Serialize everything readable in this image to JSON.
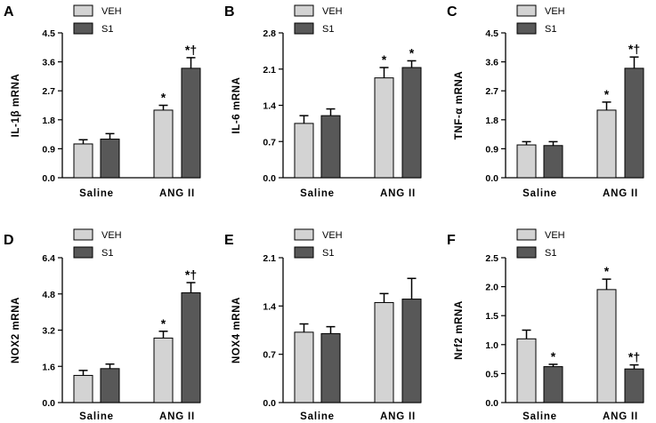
{
  "colors": {
    "veh": "#d3d3d3",
    "s1": "#585858",
    "axis": "#000000"
  },
  "chart_data": [
    {
      "letter": "A",
      "type": "bar",
      "ylabel": "IL-1β mRNA",
      "categories": [
        "Saline",
        "ANG II"
      ],
      "ylim": [
        0,
        4.5
      ],
      "ticks": [
        "0.0",
        "0.9",
        "1.8",
        "2.7",
        "3.6",
        "4.5"
      ],
      "legend": [
        "VEH",
        "S1"
      ],
      "series": [
        {
          "name": "VEH",
          "values": [
            1.05,
            2.1
          ],
          "errors": [
            0.13,
            0.15
          ],
          "annotations": [
            "",
            "*"
          ]
        },
        {
          "name": "S1",
          "values": [
            1.2,
            3.4
          ],
          "errors": [
            0.17,
            0.33
          ],
          "annotations": [
            "",
            "*†"
          ]
        }
      ]
    },
    {
      "letter": "B",
      "type": "bar",
      "ylabel": "IL-6 mRNA",
      "categories": [
        "Saline",
        "ANG II"
      ],
      "ylim": [
        0,
        2.8
      ],
      "ticks": [
        "0.0",
        "0.7",
        "1.4",
        "2.1",
        "2.8"
      ],
      "legend": [
        "VEH",
        "S1"
      ],
      "series": [
        {
          "name": "VEH",
          "values": [
            1.05,
            1.93
          ],
          "errors": [
            0.15,
            0.2
          ],
          "annotations": [
            "",
            "*"
          ]
        },
        {
          "name": "S1",
          "values": [
            1.2,
            2.13
          ],
          "errors": [
            0.13,
            0.13
          ],
          "annotations": [
            "",
            "*"
          ]
        }
      ]
    },
    {
      "letter": "C",
      "type": "bar",
      "ylabel": "TNF-α mRNA",
      "categories": [
        "Saline",
        "ANG II"
      ],
      "ylim": [
        0,
        4.5
      ],
      "ticks": [
        "0.0",
        "0.9",
        "1.8",
        "2.7",
        "3.6",
        "4.5"
      ],
      "legend": [
        "VEH",
        "S1"
      ],
      "series": [
        {
          "name": "VEH",
          "values": [
            1.02,
            2.1
          ],
          "errors": [
            0.1,
            0.25
          ],
          "annotations": [
            "",
            "*"
          ]
        },
        {
          "name": "S1",
          "values": [
            1.0,
            3.4
          ],
          "errors": [
            0.12,
            0.35
          ],
          "annotations": [
            "",
            "*†"
          ]
        }
      ]
    },
    {
      "letter": "D",
      "type": "bar",
      "ylabel": "NOX2 mRNA",
      "categories": [
        "Saline",
        "ANG II"
      ],
      "ylim": [
        0,
        6.4
      ],
      "ticks": [
        "0.0",
        "1.6",
        "3.2",
        "4.8",
        "6.4"
      ],
      "legend": [
        "VEH",
        "S1"
      ],
      "series": [
        {
          "name": "VEH",
          "values": [
            1.2,
            2.85
          ],
          "errors": [
            0.22,
            0.3
          ],
          "annotations": [
            "",
            "*"
          ]
        },
        {
          "name": "S1",
          "values": [
            1.5,
            4.85
          ],
          "errors": [
            0.2,
            0.45
          ],
          "annotations": [
            "",
            "*†"
          ]
        }
      ]
    },
    {
      "letter": "E",
      "type": "bar",
      "ylabel": "NOX4 mRNA",
      "categories": [
        "Saline",
        "ANG II"
      ],
      "ylim": [
        0,
        2.1
      ],
      "ticks": [
        "0.0",
        "0.7",
        "1.4",
        "2.1"
      ],
      "legend": [
        "VEH",
        "S1"
      ],
      "series": [
        {
          "name": "VEH",
          "values": [
            1.02,
            1.45
          ],
          "errors": [
            0.12,
            0.13
          ],
          "annotations": [
            "",
            ""
          ]
        },
        {
          "name": "S1",
          "values": [
            1.0,
            1.5
          ],
          "errors": [
            0.1,
            0.3
          ],
          "annotations": [
            "",
            ""
          ]
        }
      ]
    },
    {
      "letter": "F",
      "type": "bar",
      "ylabel": "Nrf2 mRNA",
      "categories": [
        "Saline",
        "ANG II"
      ],
      "ylim": [
        0,
        2.5
      ],
      "ticks": [
        "0.0",
        "0.5",
        "1.0",
        "1.5",
        "2.0",
        "2.5"
      ],
      "legend": [
        "VEH",
        "S1"
      ],
      "series": [
        {
          "name": "VEH",
          "values": [
            1.1,
            1.95
          ],
          "errors": [
            0.15,
            0.18
          ],
          "annotations": [
            "",
            "*"
          ]
        },
        {
          "name": "S1",
          "values": [
            0.62,
            0.58
          ],
          "errors": [
            0.04,
            0.07
          ],
          "annotations": [
            "*",
            "*†"
          ]
        }
      ]
    }
  ]
}
